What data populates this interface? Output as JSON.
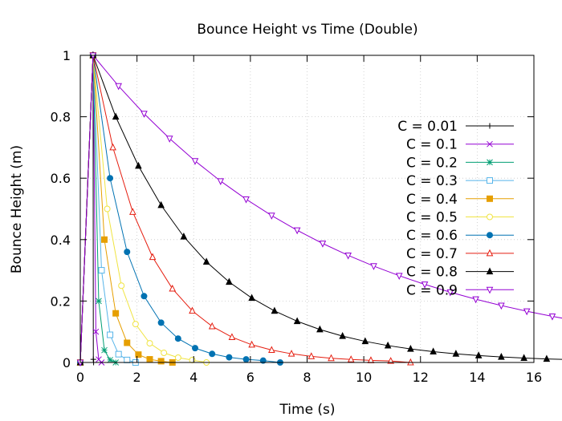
{
  "chart_data": {
    "type": "line",
    "title": "Bounce Height vs Time (Double)",
    "xlabel": "Time (s)",
    "ylabel": "Bounce Height (m)",
    "xlim": [
      0,
      16
    ],
    "ylim": [
      0,
      1
    ],
    "xticks": [
      0,
      2,
      4,
      6,
      8,
      10,
      12,
      14,
      16
    ],
    "yticks": [
      0,
      0.2,
      0.4,
      0.6,
      0.8,
      1
    ],
    "xtick_labels": [
      "0",
      "2",
      "4",
      "6",
      "8",
      "10",
      "12",
      "14",
      "16"
    ],
    "ytick_labels": [
      "0",
      "0.2",
      "0.4",
      "0.6",
      "0.8",
      "1"
    ],
    "grid": true,
    "legend_position": "right",
    "drop_time": 0.45,
    "series": [
      {
        "name": "C = 0.01",
        "coefficient": 0.01,
        "color": "#000000",
        "marker": "plus"
      },
      {
        "name": "C = 0.1",
        "coefficient": 0.1,
        "color": "#9400d3",
        "marker": "x"
      },
      {
        "name": "C = 0.2",
        "coefficient": 0.2,
        "color": "#009e73",
        "marker": "star"
      },
      {
        "name": "C = 0.3",
        "coefficient": 0.3,
        "color": "#56b4e9",
        "marker": "square-open"
      },
      {
        "name": "C = 0.4",
        "coefficient": 0.4,
        "color": "#e69f00",
        "marker": "square-filled"
      },
      {
        "name": "C = 0.5",
        "coefficient": 0.5,
        "color": "#f0e442",
        "marker": "circle-open"
      },
      {
        "name": "C = 0.6",
        "coefficient": 0.6,
        "color": "#0072b2",
        "marker": "circle-filled"
      },
      {
        "name": "C = 0.7",
        "coefficient": 0.7,
        "color": "#e51e10",
        "marker": "triangle-open"
      },
      {
        "name": "C = 0.8",
        "coefficient": 0.8,
        "color": "#000000",
        "marker": "triangle-filled"
      },
      {
        "name": "C = 0.9",
        "coefficient": 0.9,
        "color": "#9400d3",
        "marker": "triangle-down-open"
      }
    ]
  }
}
